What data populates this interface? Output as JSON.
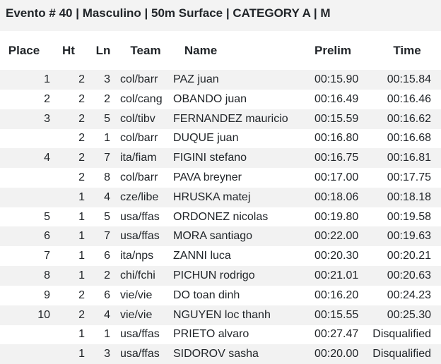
{
  "header": {
    "title": "Evento # 40 | Masculino | 50m Surface | CATEGORY A | M"
  },
  "table": {
    "columns": [
      "Place",
      "Ht",
      "Ln",
      "Team",
      "Name",
      "Prelim",
      "Time"
    ],
    "rows": [
      [
        1,
        2,
        3,
        "col/barr",
        "PAZ juan",
        "00:15.90",
        "00:15.84"
      ],
      [
        2,
        2,
        2,
        "col/cang",
        "OBANDO juan",
        "00:16.49",
        "00:16.46"
      ],
      [
        3,
        2,
        5,
        "col/tibv",
        "FERNANDEZ mauricio",
        "00:15.59",
        "00:16.62"
      ],
      [
        null,
        2,
        1,
        "col/barr",
        "DUQUE juan",
        "00:16.80",
        "00:16.68"
      ],
      [
        4,
        2,
        7,
        "ita/fiam",
        "FIGINI stefano",
        "00:16.75",
        "00:16.81"
      ],
      [
        null,
        2,
        8,
        "col/barr",
        "PAVA breyner",
        "00:17.00",
        "00:17.75"
      ],
      [
        null,
        1,
        4,
        "cze/libe",
        "HRUSKA matej",
        "00:18.06",
        "00:18.18"
      ],
      [
        5,
        1,
        5,
        "usa/ffas",
        "ORDONEZ nicolas",
        "00:19.80",
        "00:19.58"
      ],
      [
        6,
        1,
        7,
        "usa/ffas",
        "MORA santiago",
        "00:22.00",
        "00:19.63"
      ],
      [
        7,
        1,
        6,
        "ita/nps",
        "ZANNI luca",
        "00:20.30",
        "00:20.21"
      ],
      [
        8,
        1,
        2,
        "chi/fchi",
        "PICHUN rodrigo",
        "00:21.01",
        "00:20.63"
      ],
      [
        9,
        2,
        6,
        "vie/vie",
        "DO toan dinh",
        "00:16.20",
        "00:24.23"
      ],
      [
        10,
        2,
        4,
        "vie/vie",
        "NGUYEN loc thanh",
        "00:15.55",
        "00:25.30"
      ],
      [
        null,
        1,
        1,
        "usa/ffas",
        "PRIETO alvaro",
        "00:27.47",
        "Disqualified"
      ],
      [
        null,
        1,
        3,
        "usa/ffas",
        "SIDOROV sasha",
        "00:20.00",
        "Disqualified"
      ]
    ]
  }
}
